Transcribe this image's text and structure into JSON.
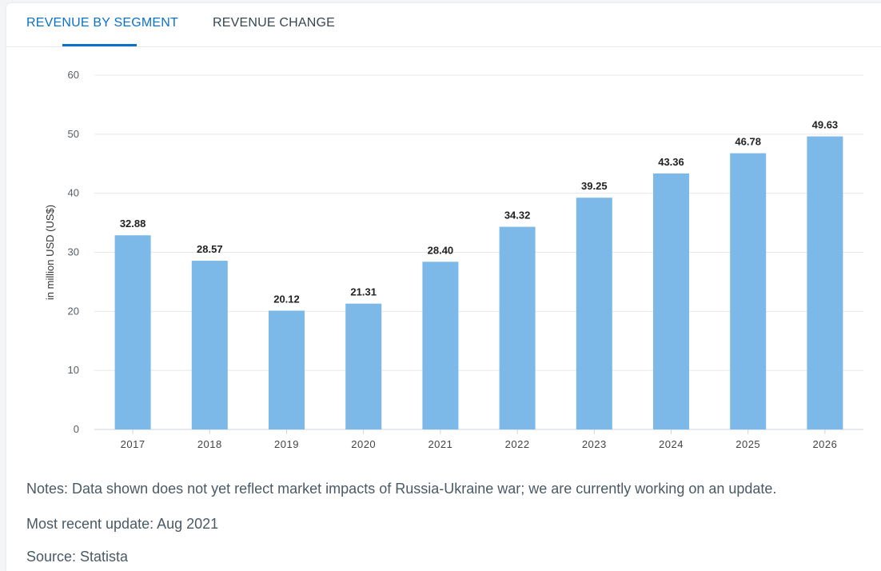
{
  "tabs": [
    {
      "label": "REVENUE BY SEGMENT",
      "active": true
    },
    {
      "label": "REVENUE CHANGE",
      "active": false
    }
  ],
  "colors": {
    "bar": "#7cb9e8",
    "accent": "#0a71c6"
  },
  "chart_data": {
    "type": "bar",
    "categories": [
      "2017",
      "2018",
      "2019",
      "2020",
      "2021",
      "2022",
      "2023",
      "2024",
      "2025",
      "2026"
    ],
    "values": [
      32.88,
      28.57,
      20.12,
      21.31,
      28.4,
      34.32,
      39.25,
      43.36,
      46.78,
      49.63
    ],
    "value_labels": [
      "32.88",
      "28.57",
      "20.12",
      "21.31",
      "28.40",
      "34.32",
      "39.25",
      "43.36",
      "46.78",
      "49.63"
    ],
    "ylabel": "in million USD (US$)",
    "yticks": [
      "0",
      "10",
      "20",
      "30",
      "40",
      "50",
      "60"
    ],
    "ylim": [
      0,
      60
    ],
    "grid": true
  },
  "notes": {
    "line1": "Notes: Data shown does not yet reflect market impacts of Russia-Ukraine war; we are currently working on an update.",
    "line2": "Most recent update: Aug 2021",
    "line3": "Source: Statista"
  }
}
